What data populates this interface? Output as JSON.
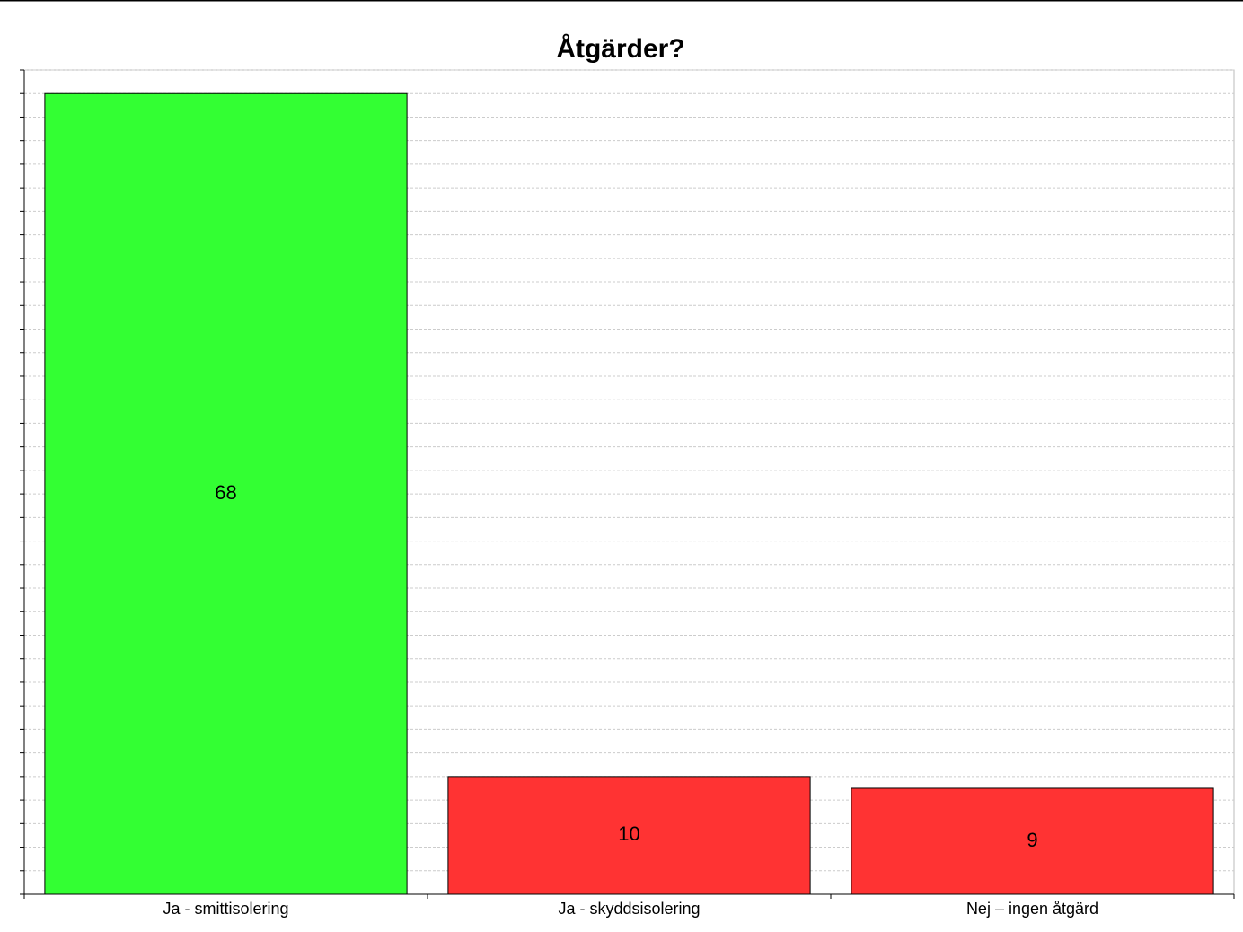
{
  "chart_data": {
    "type": "bar",
    "title": "Åtgärder?",
    "categories": [
      "Ja - smittisolering",
      "Ja - skyddsisolering",
      "Nej – ingen åtgärd"
    ],
    "values": [
      68,
      10,
      9
    ],
    "colors": [
      "#33ff33",
      "#ff3333",
      "#ff3333"
    ],
    "ylim": [
      0,
      70
    ],
    "yticks": [
      0,
      2,
      4,
      6,
      8,
      10,
      12,
      14,
      16,
      18,
      20,
      22,
      24,
      26,
      28,
      30,
      32,
      34,
      36,
      38,
      40,
      42,
      44,
      46,
      48,
      50,
      52,
      54,
      56,
      58,
      60,
      62,
      64,
      66,
      68,
      70
    ],
    "grid": true
  }
}
